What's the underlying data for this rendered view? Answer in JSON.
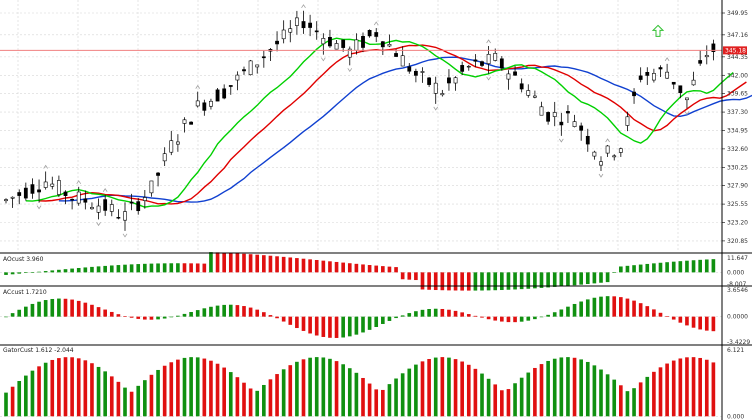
{
  "colors": {
    "background": "#ffffff",
    "grid": "#d6d6d6",
    "candle_bull": "#ffffff",
    "candle_bear": "#000000",
    "candle_outline": "#000000",
    "alligator_lips": "#00d000",
    "alligator_teeth": "#e00000",
    "alligator_jaw": "#1040d0",
    "osc_up": "#109010",
    "osc_down": "#e01010",
    "price_line": "#f08080",
    "price_tag": "#e02020",
    "fractal": "#a0a0a0",
    "signal_arrow": "#30c030",
    "separator": "#000000"
  },
  "main_chart": {
    "type": "candlestick",
    "current_price": 345.18,
    "current_price_label": "345.18",
    "ylim": [
      320.0,
      350.0
    ],
    "price_axis_labels": [
      "349.95",
      "347.16",
      "344.35",
      "342.00",
      "339.65",
      "337.30",
      "334.95",
      "332.60",
      "330.25",
      "327.90",
      "325.55",
      "323.20",
      "320.85"
    ],
    "price_axis_values": [
      349.95,
      347.16,
      344.35,
      342.0,
      339.65,
      337.3,
      334.95,
      332.6,
      330.25,
      327.9,
      325.55,
      323.2,
      320.85
    ],
    "signal_arrow": {
      "direction": "up",
      "price": 347.6
    }
  },
  "panes": [
    {
      "id": "ac1",
      "label": "AOcust 3.960",
      "axis_labels": [
        "11.647",
        "0.000",
        "-8.007"
      ],
      "axis_values": [
        11.647,
        0.0,
        -8.007
      ]
    },
    {
      "id": "ac2",
      "label": "ACcust 1.7210",
      "axis_labels": [
        "3.6546",
        "0.0000",
        "-3.4229"
      ],
      "axis_values": [
        3.6546,
        0.0,
        -3.4229
      ]
    },
    {
      "id": "gator",
      "label": "GatorCust 1.612 -2.044",
      "axis_labels": [
        "6.121",
        "0.000"
      ],
      "axis_values": [
        6.121,
        0.0
      ]
    }
  ]
}
